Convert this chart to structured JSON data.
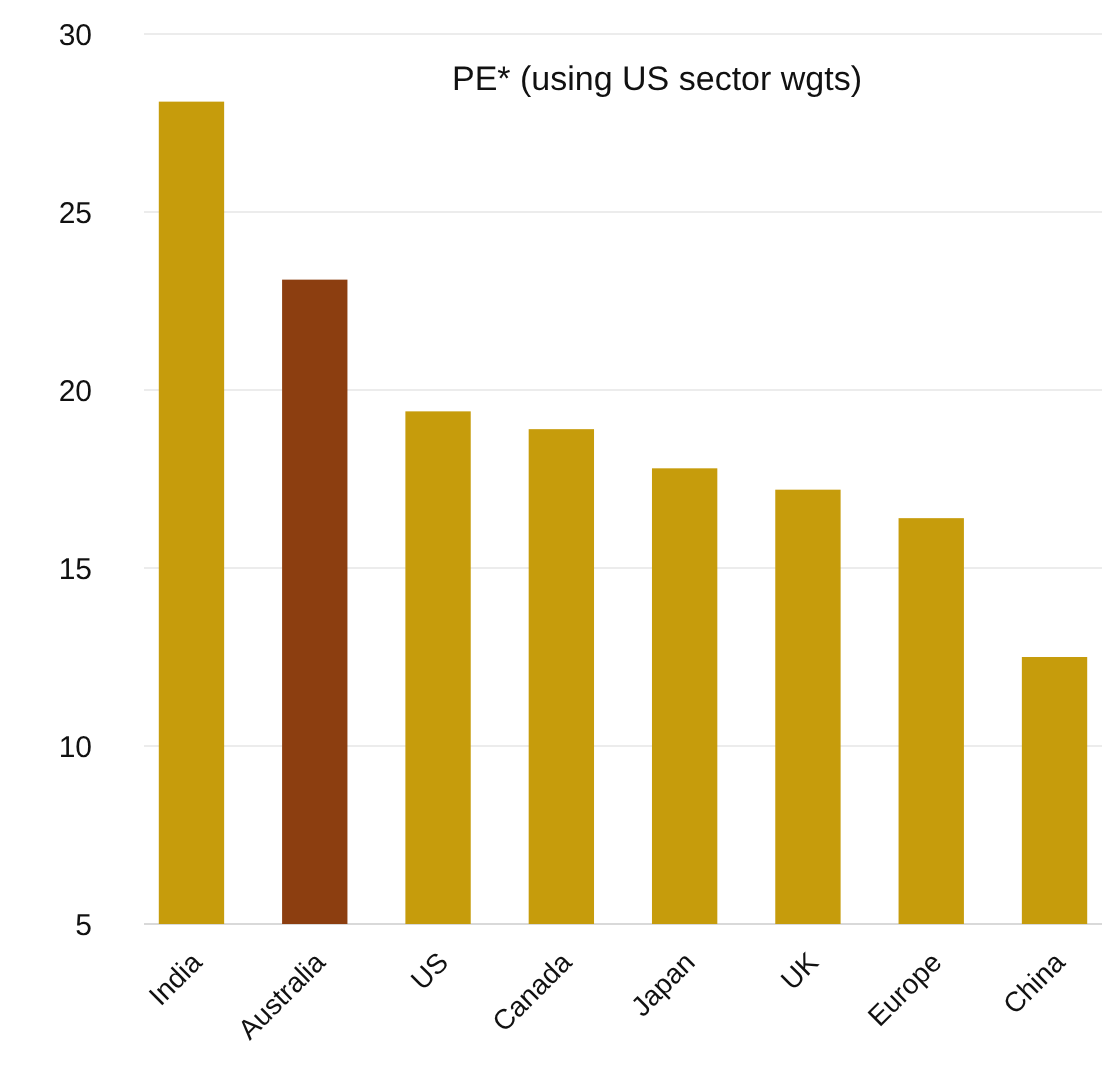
{
  "chart_data": {
    "type": "bar",
    "title": "PE* (using US sector wgts)",
    "categories": [
      "India",
      "Australia",
      "US",
      "Canada",
      "Japan",
      "UK",
      "Europe",
      "China"
    ],
    "values": [
      28.1,
      23.1,
      19.4,
      18.9,
      17.8,
      17.2,
      16.4,
      12.5
    ],
    "colors": [
      "#c69c0c",
      "#8c3e10",
      "#c69c0c",
      "#c69c0c",
      "#c69c0c",
      "#c69c0c",
      "#c69c0c",
      "#c69c0c"
    ],
    "ylim": [
      5,
      30
    ],
    "yticks": [
      5,
      10,
      15,
      20,
      25,
      30
    ],
    "grid": "y"
  }
}
